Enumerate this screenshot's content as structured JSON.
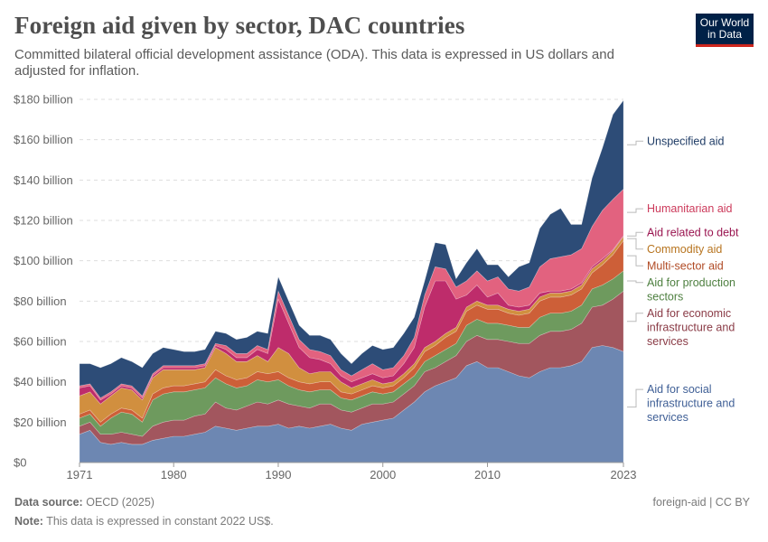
{
  "header": {
    "title": "Foreign aid given by sector, DAC countries",
    "subtitle": "Committed bilateral official development assistance (ODA). This data is expressed in US dollars and adjusted for inflation.",
    "logo_line1": "Our World",
    "logo_line2": "in Data"
  },
  "footer": {
    "source_label": "Data source:",
    "source_text": "OECD (2025)",
    "note_label": "Note:",
    "note_text": "This data is expressed in constant 2022 US$.",
    "license": "foreign-aid | CC BY"
  },
  "chart_data": {
    "type": "area",
    "stacked": true,
    "title": "Foreign aid given by sector, DAC countries",
    "ylim": [
      0,
      180
    ],
    "yticks": [
      0,
      20,
      40,
      60,
      80,
      100,
      120,
      140,
      160,
      180
    ],
    "ytick_labels": [
      "$0",
      "$20 billion",
      "$40 billion",
      "$60 billion",
      "$80 billion",
      "$100 billion",
      "$120 billion",
      "$140 billion",
      "$160 billion",
      "$180 billion"
    ],
    "xlim": [
      1971,
      2023
    ],
    "xticks": [
      1971,
      1980,
      1990,
      2000,
      2010,
      2023
    ],
    "xtick_labels": [
      "1971",
      "1980",
      "1990",
      "2000",
      "2010",
      "2023"
    ],
    "grid": true,
    "legend_position": "right",
    "x": [
      1971,
      1972,
      1973,
      1974,
      1975,
      1976,
      1977,
      1978,
      1979,
      1980,
      1981,
      1982,
      1983,
      1984,
      1985,
      1986,
      1987,
      1988,
      1989,
      1990,
      1991,
      1992,
      1993,
      1994,
      1995,
      1996,
      1997,
      1998,
      1999,
      2000,
      2001,
      2002,
      2003,
      2004,
      2005,
      2006,
      2007,
      2008,
      2009,
      2010,
      2011,
      2012,
      2013,
      2014,
      2015,
      2016,
      2017,
      2018,
      2019,
      2020,
      2021,
      2022,
      2023
    ],
    "series": [
      {
        "name": "Aid for social infrastructure and services",
        "color": "#6d87b2",
        "values": [
          14,
          16,
          10,
          9,
          10,
          9,
          9,
          11,
          12,
          13,
          13,
          14,
          15,
          18,
          17,
          16,
          17,
          18,
          18,
          19,
          17,
          18,
          17,
          18,
          19,
          17,
          16,
          19,
          20,
          21,
          22,
          26,
          30,
          35,
          38,
          40,
          42,
          48,
          50,
          47,
          47,
          45,
          43,
          42,
          45,
          47,
          47,
          48,
          50,
          57,
          58,
          57,
          55
        ]
      },
      {
        "name": "Aid for economic infrastructure and services",
        "color": "#a2565e",
        "values": [
          4,
          4,
          4,
          5,
          5,
          5,
          4,
          7,
          8,
          8,
          8,
          9,
          9,
          12,
          10,
          10,
          11,
          12,
          11,
          12,
          12,
          10,
          10,
          11,
          10,
          9,
          9,
          8,
          9,
          8,
          8,
          8,
          8,
          10,
          9,
          10,
          11,
          12,
          13,
          14,
          14,
          15,
          16,
          17,
          18,
          18,
          18,
          18,
          19,
          20,
          20,
          24,
          30
        ]
      },
      {
        "name": "Aid for production sectors",
        "color": "#6e9a5e",
        "values": [
          4,
          4,
          4,
          8,
          10,
          10,
          7,
          13,
          14,
          14,
          14,
          13,
          13,
          12,
          12,
          11,
          10,
          11,
          11,
          10,
          9,
          8,
          8,
          7,
          7,
          6,
          6,
          6,
          6,
          5,
          5,
          5,
          5,
          5,
          6,
          6,
          6,
          8,
          8,
          8,
          8,
          8,
          8,
          8,
          9,
          9,
          9,
          9,
          9,
          9,
          10,
          10,
          10
        ]
      },
      {
        "name": "Multi-sector aid",
        "color": "#cd5f38",
        "values": [
          2,
          2,
          2,
          2,
          2,
          2,
          2,
          3,
          3,
          3,
          3,
          3,
          3,
          4,
          4,
          4,
          4,
          4,
          4,
          4,
          4,
          4,
          4,
          4,
          4,
          3,
          3,
          3,
          3,
          3,
          3,
          3,
          4,
          5,
          5,
          6,
          6,
          7,
          7,
          7,
          7,
          6,
          6,
          7,
          8,
          8,
          8,
          8,
          8,
          8,
          10,
          12,
          15
        ]
      },
      {
        "name": "Commodity aid",
        "color": "#d18f3f",
        "values": [
          9,
          9,
          9,
          9,
          10,
          10,
          9,
          8,
          9,
          8,
          8,
          7,
          7,
          11,
          11,
          9,
          8,
          8,
          6,
          12,
          12,
          7,
          5,
          5,
          5,
          5,
          3,
          3,
          3,
          2,
          2,
          2,
          2,
          2,
          2,
          2,
          2,
          2,
          2,
          2,
          2,
          2,
          2,
          2,
          2,
          2,
          2,
          2,
          2,
          2,
          2,
          2,
          2
        ]
      },
      {
        "name": "Aid related to debt",
        "color": "#be2c6b",
        "values": [
          4,
          3,
          2,
          1,
          1,
          1,
          1,
          1,
          1,
          1,
          1,
          1,
          1,
          1,
          2,
          2,
          2,
          3,
          4,
          24,
          15,
          10,
          8,
          6,
          4,
          3,
          3,
          3,
          3,
          3,
          3,
          5,
          8,
          20,
          30,
          26,
          14,
          6,
          8,
          4,
          6,
          2,
          2,
          2,
          2,
          1,
          1,
          1,
          1,
          1,
          1,
          0.5,
          0.5
        ]
      },
      {
        "name": "Humanitarian aid",
        "color": "#e2627f",
        "values": [
          1,
          1,
          1,
          1,
          1,
          1,
          1,
          1,
          1,
          1,
          1,
          1,
          1,
          1,
          2,
          2,
          2,
          2,
          2,
          4,
          4,
          4,
          4,
          4,
          4,
          3,
          3,
          4,
          5,
          4,
          4,
          4,
          5,
          6,
          7,
          6,
          6,
          7,
          7,
          8,
          8,
          8,
          8,
          9,
          13,
          16,
          17,
          17,
          17,
          20,
          24,
          25,
          23
        ]
      },
      {
        "name": "Unspecified aid",
        "color": "#2d4c77",
        "values": [
          11,
          10,
          15,
          14,
          13,
          12,
          14,
          10,
          9,
          8,
          7,
          7,
          7,
          6,
          6,
          7,
          8,
          7,
          8,
          7,
          7,
          7,
          7,
          8,
          8,
          8,
          6,
          8,
          9,
          10,
          10,
          11,
          10,
          7,
          12,
          12,
          4,
          9,
          11,
          8,
          6,
          6,
          12,
          12,
          19,
          22,
          24,
          15,
          12,
          24,
          31,
          42,
          44
        ]
      }
    ]
  }
}
